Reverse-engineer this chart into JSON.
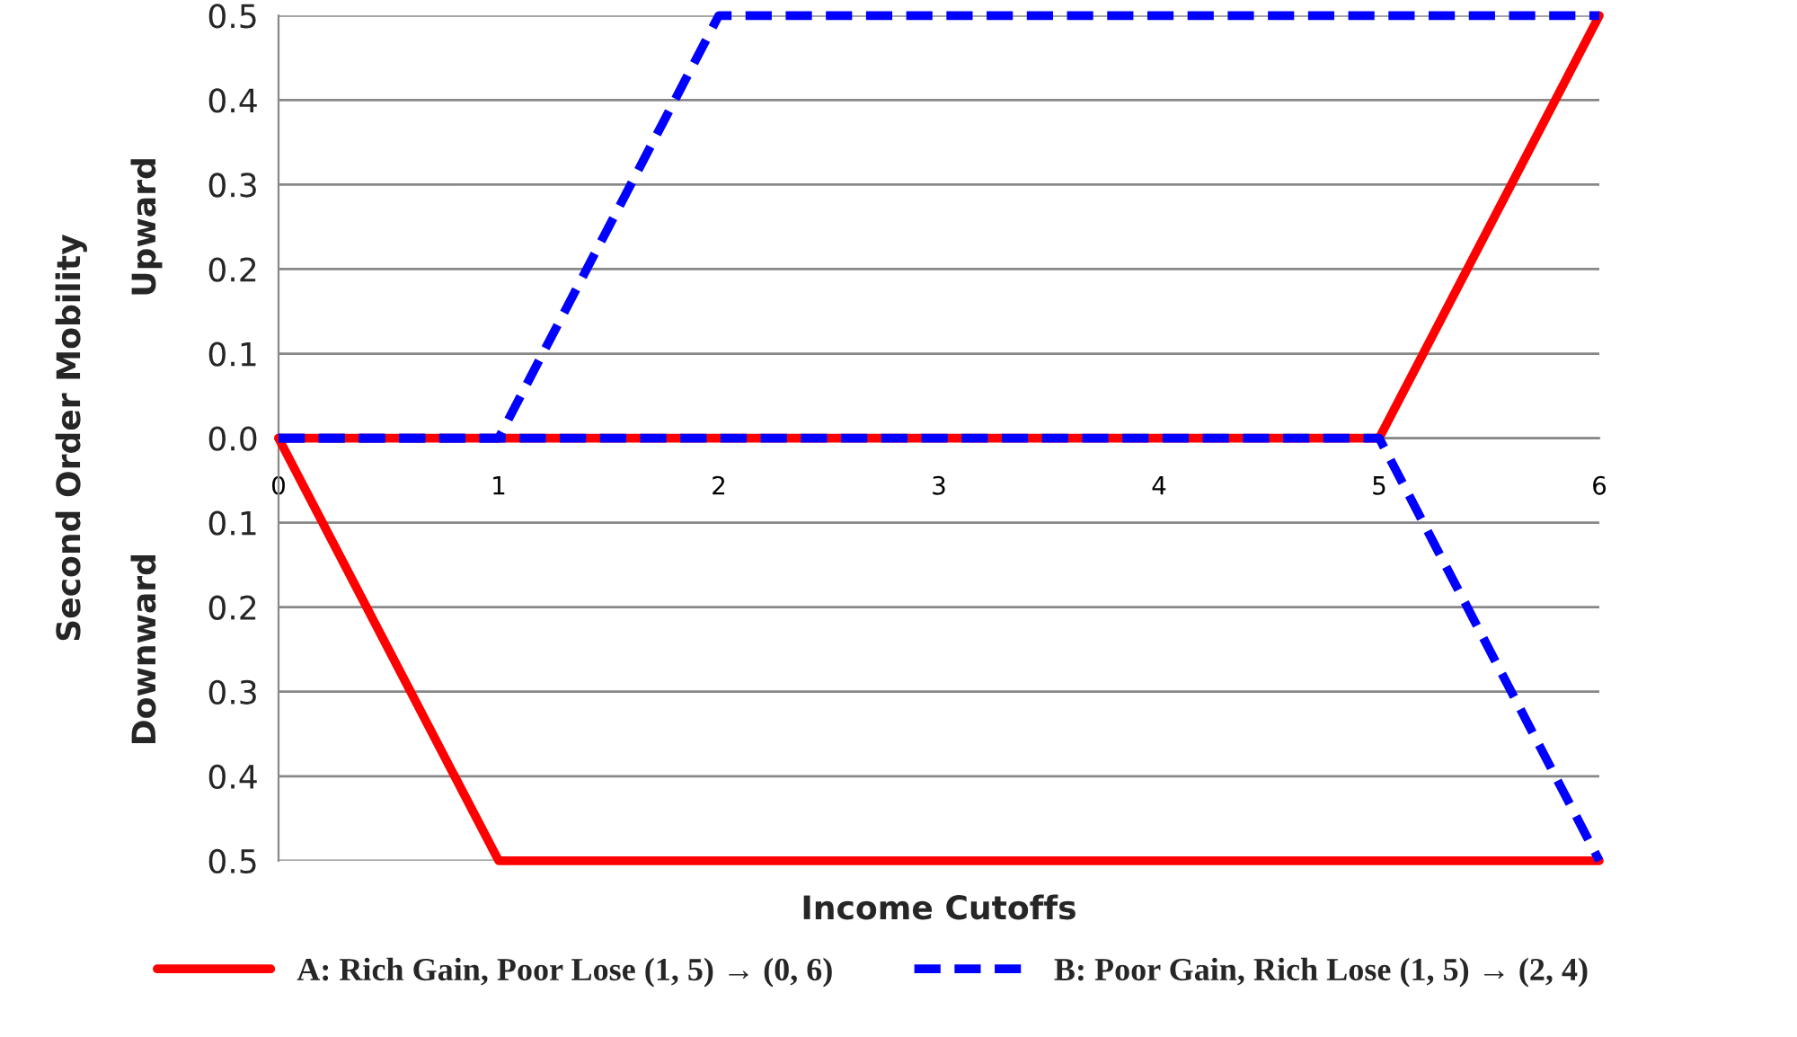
{
  "chart_data": {
    "type": "line",
    "xlabel": "Income Cutoffs",
    "ylabel": "Second Order Mobility",
    "annotations": [
      "Upward",
      "Downward"
    ],
    "xlim": [
      0,
      6
    ],
    "xticks": [
      0,
      1,
      2,
      3,
      4,
      5,
      6
    ],
    "ylim": [
      -0.5,
      0.5
    ],
    "yticks": [
      {
        "value": -0.5,
        "label": "0.5"
      },
      {
        "value": -0.4,
        "label": "0.4"
      },
      {
        "value": -0.3,
        "label": "0.3"
      },
      {
        "value": -0.2,
        "label": "0.2"
      },
      {
        "value": -0.1,
        "label": "0.1"
      },
      {
        "value": 0,
        "label": "0.0"
      },
      0.1,
      0.2,
      0.3,
      0.4,
      0.5
    ],
    "grid": "y",
    "legend": "bottom",
    "series": [
      {
        "name": "A: Rich Gain, Poor Lose (1, 5) → (0, 6)",
        "color": "#ff0000",
        "line_style": "solid",
        "x": [
          0,
          1,
          6
        ],
        "values": [
          0,
          -0.5,
          -0.5
        ]
      },
      {
        "color": "#ff0000",
        "line_style": "solid",
        "x": [
          0,
          5,
          6
        ],
        "values": [
          0,
          0,
          0.5
        ]
      },
      {
        "name": "B: Poor Gain, Rich Lose (1, 5) → (2, 4)",
        "color": "#0000ff",
        "line_style": "dashed",
        "x": [
          0,
          1,
          2,
          6
        ],
        "values": [
          0,
          0,
          0.5,
          0.5
        ]
      },
      {
        "color": "#0000ff",
        "line_style": "dashed",
        "x": [
          0,
          5,
          6
        ],
        "values": [
          0,
          0,
          -0.5
        ]
      }
    ]
  }
}
